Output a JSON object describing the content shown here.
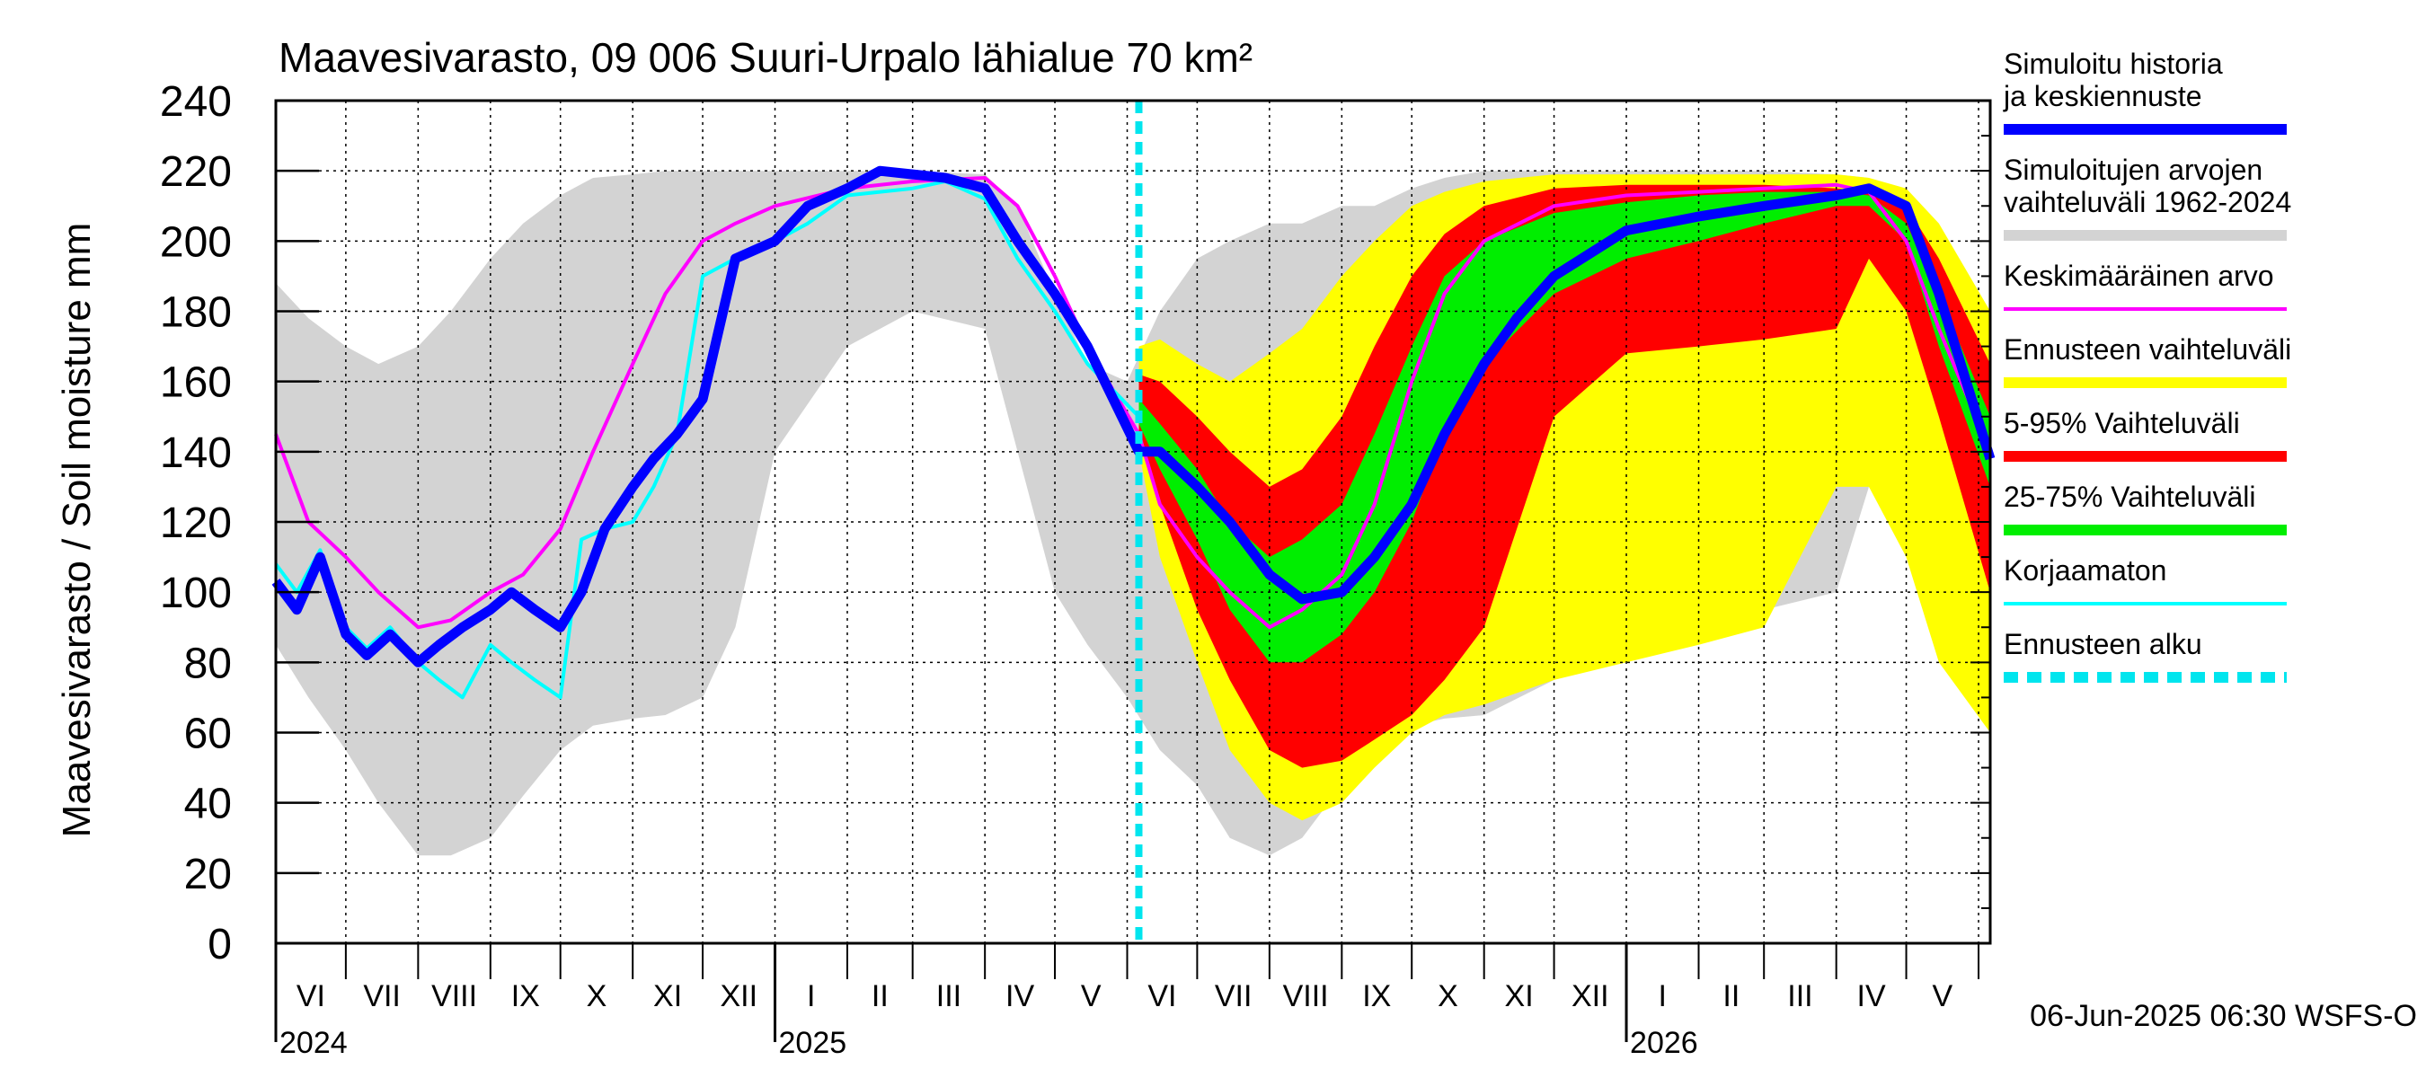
{
  "chart_data": {
    "type": "area",
    "title": "Maavesivarasto, 09 006 Suuri-Urpalo lähialue 70 km²",
    "ylabel": "Maavesivarasto / Soil moisture   mm",
    "xlabel": "",
    "ylim": [
      0,
      240
    ],
    "yticks": [
      "0",
      "20",
      "40",
      "60",
      "80",
      "100",
      "120",
      "140",
      "160",
      "180",
      "200",
      "220",
      "240"
    ],
    "x_range": [
      "2024-06-01",
      "2026-06-06"
    ],
    "grid": true,
    "legend_position": "right",
    "months": [
      {
        "label": "VI",
        "start": "2024-06-01"
      },
      {
        "label": "VII",
        "start": "2024-07-01"
      },
      {
        "label": "VIII",
        "start": "2024-08-01"
      },
      {
        "label": "IX",
        "start": "2024-09-01"
      },
      {
        "label": "X",
        "start": "2024-10-01"
      },
      {
        "label": "XI",
        "start": "2024-11-01"
      },
      {
        "label": "XII",
        "start": "2024-12-01"
      },
      {
        "label": "I",
        "start": "2025-01-01"
      },
      {
        "label": "II",
        "start": "2025-02-01"
      },
      {
        "label": "III",
        "start": "2025-03-01"
      },
      {
        "label": "IV",
        "start": "2025-04-01"
      },
      {
        "label": "V",
        "start": "2025-05-01"
      },
      {
        "label": "VI",
        "start": "2025-06-01"
      },
      {
        "label": "VII",
        "start": "2025-07-01"
      },
      {
        "label": "VIII",
        "start": "2025-08-01"
      },
      {
        "label": "IX",
        "start": "2025-09-01"
      },
      {
        "label": "X",
        "start": "2025-10-01"
      },
      {
        "label": "XI",
        "start": "2025-11-01"
      },
      {
        "label": "XII",
        "start": "2025-12-01"
      },
      {
        "label": "I",
        "start": "2026-01-01"
      },
      {
        "label": "II",
        "start": "2026-02-01"
      },
      {
        "label": "III",
        "start": "2026-03-01"
      },
      {
        "label": "IV",
        "start": "2026-04-01"
      },
      {
        "label": "V",
        "start": "2026-05-01"
      },
      {
        "label": "",
        "start": "2026-06-01"
      }
    ],
    "years": [
      {
        "label": "2024",
        "date": "2024-06-01"
      },
      {
        "label": "2025",
        "date": "2025-01-01"
      },
      {
        "label": "2026",
        "date": "2026-01-01"
      }
    ],
    "forecast_start": "2025-06-06",
    "timestamp": "06-Jun-2025 06:30 WSFS-O",
    "colors": {
      "history_range": "#d3d3d3",
      "forecast_range": "#ffff00",
      "p5_95": "#ff0000",
      "p25_75": "#00ee00",
      "simulated": "#0000ff",
      "mean": "#ff00ff",
      "uncorrected": "#00ffff",
      "forecast_start": "#00e5ee"
    },
    "legend": [
      {
        "label": "Simuloitu historia ja keskiennuste",
        "color": "#0000ff",
        "style": "solid"
      },
      {
        "label": "Simuloitujen arvojen vaihteluväli 1962-2024",
        "color": "#d3d3d3",
        "style": "solid"
      },
      {
        "label": "Keskimääräinen arvo",
        "color": "#ff00ff",
        "style": "thin"
      },
      {
        "label": "Ennusteen vaihteluväli",
        "color": "#ffff00",
        "style": "solid"
      },
      {
        "label": "5-95% Vaihteluväli",
        "color": "#ff0000",
        "style": "solid"
      },
      {
        "label": "25-75% Vaihteluväli",
        "color": "#00ee00",
        "style": "solid"
      },
      {
        "label": "Korjaamaton",
        "color": "#00ffff",
        "style": "thin"
      },
      {
        "label": "Ennusteen alku",
        "color": "#00e5ee",
        "style": "dashed"
      }
    ],
    "history_range": {
      "x": [
        "2024-06-01",
        "2024-06-15",
        "2024-07-01",
        "2024-07-15",
        "2024-08-01",
        "2024-08-15",
        "2024-09-01",
        "2024-09-15",
        "2024-10-01",
        "2024-10-15",
        "2024-11-01",
        "2024-11-15",
        "2024-12-01",
        "2024-12-15",
        "2025-01-01",
        "2025-02-01",
        "2025-03-01",
        "2025-04-01",
        "2025-04-15",
        "2025-05-01",
        "2025-05-15",
        "2025-06-01",
        "2025-06-15",
        "2025-07-01",
        "2025-07-15",
        "2025-08-01",
        "2025-08-15",
        "2025-09-01",
        "2025-09-15",
        "2025-10-01",
        "2025-10-15",
        "2025-11-01",
        "2025-12-01",
        "2026-01-01",
        "2026-02-01",
        "2026-03-01",
        "2026-04-01",
        "2026-04-15",
        "2026-05-01",
        "2026-05-15",
        "2026-06-06"
      ],
      "upper": [
        188,
        178,
        170,
        165,
        170,
        180,
        195,
        205,
        213,
        218,
        219,
        220,
        220,
        220,
        220,
        220,
        220,
        219,
        210,
        185,
        165,
        160,
        180,
        195,
        200,
        205,
        205,
        210,
        210,
        215,
        218,
        220,
        220,
        220,
        220,
        220,
        219,
        218,
        210,
        195,
        180
      ],
      "lower": [
        85,
        70,
        55,
        40,
        25,
        25,
        30,
        42,
        55,
        62,
        64,
        65,
        70,
        90,
        140,
        170,
        180,
        175,
        140,
        100,
        85,
        70,
        55,
        45,
        30,
        25,
        30,
        45,
        55,
        62,
        64,
        65,
        75,
        85,
        90,
        95,
        100,
        130,
        140,
        110,
        82
      ]
    },
    "forecast_range": {
      "x": [
        "2025-06-06",
        "2025-06-15",
        "2025-07-01",
        "2025-07-15",
        "2025-08-01",
        "2025-08-15",
        "2025-09-01",
        "2025-09-15",
        "2025-10-01",
        "2025-10-15",
        "2025-11-01",
        "2025-12-01",
        "2026-01-01",
        "2026-02-01",
        "2026-03-01",
        "2026-04-01",
        "2026-04-15",
        "2026-05-01",
        "2026-05-15",
        "2026-06-06"
      ],
      "upper": [
        170,
        172,
        165,
        160,
        168,
        175,
        190,
        200,
        210,
        214,
        217,
        219,
        219,
        219,
        219,
        219,
        218,
        215,
        205,
        180
      ],
      "lower": [
        140,
        110,
        80,
        55,
        40,
        35,
        40,
        50,
        60,
        65,
        68,
        75,
        80,
        85,
        90,
        130,
        130,
        110,
        80,
        60
      ]
    },
    "p5_95": {
      "x": [
        "2025-06-06",
        "2025-06-15",
        "2025-07-01",
        "2025-07-15",
        "2025-08-01",
        "2025-08-15",
        "2025-09-01",
        "2025-09-15",
        "2025-10-01",
        "2025-10-15",
        "2025-11-01",
        "2025-12-01",
        "2026-01-01",
        "2026-02-01",
        "2026-03-01",
        "2026-04-01",
        "2026-04-15",
        "2026-05-01",
        "2026-05-15",
        "2026-06-06"
      ],
      "upper": [
        162,
        160,
        150,
        140,
        130,
        135,
        150,
        170,
        190,
        202,
        210,
        215,
        216,
        216,
        216,
        215,
        214,
        210,
        195,
        165
      ],
      "lower": [
        145,
        125,
        95,
        75,
        55,
        50,
        52,
        58,
        65,
        75,
        90,
        150,
        168,
        170,
        172,
        175,
        195,
        180,
        150,
        100
      ]
    },
    "p25_75": {
      "x": [
        "2025-06-06",
        "2025-06-15",
        "2025-07-01",
        "2025-07-15",
        "2025-08-01",
        "2025-08-15",
        "2025-09-01",
        "2025-09-15",
        "2025-10-01",
        "2025-10-15",
        "2025-11-01",
        "2025-12-01",
        "2026-01-01",
        "2026-02-01",
        "2026-03-01",
        "2026-04-01",
        "2026-04-15",
        "2026-05-01",
        "2026-05-15",
        "2026-06-06"
      ],
      "upper": [
        155,
        148,
        135,
        120,
        110,
        115,
        125,
        145,
        170,
        190,
        200,
        208,
        211,
        213,
        214,
        214,
        213,
        205,
        185,
        150
      ],
      "lower": [
        148,
        135,
        115,
        95,
        80,
        80,
        88,
        100,
        120,
        145,
        165,
        185,
        195,
        200,
        205,
        210,
        210,
        200,
        170,
        130
      ]
    },
    "simulated": {
      "x": [
        "2024-06-01",
        "2024-06-10",
        "2024-06-20",
        "2024-07-01",
        "2024-07-10",
        "2024-07-20",
        "2024-08-01",
        "2024-08-10",
        "2024-08-20",
        "2024-09-01",
        "2024-09-10",
        "2024-09-20",
        "2024-10-01",
        "2024-10-10",
        "2024-10-20",
        "2024-11-01",
        "2024-11-10",
        "2024-11-20",
        "2024-12-01",
        "2024-12-15",
        "2025-01-01",
        "2025-01-15",
        "2025-02-01",
        "2025-02-15",
        "2025-03-01",
        "2025-03-15",
        "2025-04-01",
        "2025-04-15",
        "2025-05-01",
        "2025-05-15",
        "2025-06-06",
        "2025-06-15",
        "2025-07-01",
        "2025-07-15",
        "2025-08-01",
        "2025-08-15",
        "2025-09-01",
        "2025-09-15",
        "2025-10-01",
        "2025-10-15",
        "2025-11-01",
        "2025-11-15",
        "2025-12-01",
        "2026-01-01",
        "2026-02-01",
        "2026-03-01",
        "2026-04-01",
        "2026-04-15",
        "2026-05-01",
        "2026-05-15",
        "2026-06-06"
      ],
      "values": [
        103,
        95,
        110,
        88,
        82,
        88,
        80,
        85,
        90,
        95,
        100,
        95,
        90,
        100,
        118,
        130,
        138,
        145,
        155,
        195,
        200,
        210,
        215,
        220,
        219,
        218,
        215,
        200,
        185,
        170,
        140,
        140,
        130,
        120,
        105,
        98,
        100,
        110,
        125,
        145,
        165,
        178,
        190,
        203,
        207,
        210,
        213,
        215,
        210,
        185,
        138
      ]
    },
    "mean": {
      "x": [
        "2024-06-01",
        "2024-06-15",
        "2024-07-01",
        "2024-07-15",
        "2024-08-01",
        "2024-08-15",
        "2024-09-01",
        "2024-09-15",
        "2024-10-01",
        "2024-10-15",
        "2024-11-01",
        "2024-11-15",
        "2024-12-01",
        "2024-12-15",
        "2025-01-01",
        "2025-02-01",
        "2025-03-01",
        "2025-04-01",
        "2025-04-15",
        "2025-05-01",
        "2025-05-15",
        "2025-06-06",
        "2025-06-15",
        "2025-07-01",
        "2025-07-15",
        "2025-08-01",
        "2025-08-15",
        "2025-09-01",
        "2025-09-15",
        "2025-10-01",
        "2025-10-15",
        "2025-11-01",
        "2025-12-01",
        "2026-01-01",
        "2026-02-01",
        "2026-03-01",
        "2026-04-01",
        "2026-04-15",
        "2026-05-01",
        "2026-05-15",
        "2026-06-06"
      ],
      "values": [
        145,
        120,
        110,
        100,
        90,
        92,
        100,
        105,
        118,
        140,
        165,
        185,
        200,
        205,
        210,
        215,
        217,
        218,
        210,
        190,
        170,
        145,
        125,
        110,
        100,
        90,
        95,
        105,
        125,
        160,
        185,
        200,
        210,
        213,
        214,
        215,
        216,
        214,
        200,
        175,
        140
      ]
    },
    "uncorrected": {
      "x": [
        "2024-06-01",
        "2024-06-10",
        "2024-06-20",
        "2024-07-01",
        "2024-07-10",
        "2024-07-20",
        "2024-08-01",
        "2024-08-10",
        "2024-08-20",
        "2024-09-01",
        "2024-09-10",
        "2024-09-20",
        "2024-10-01",
        "2024-10-10",
        "2024-10-20",
        "2024-11-01",
        "2024-11-10",
        "2024-11-20",
        "2024-12-01",
        "2024-12-15",
        "2025-01-01",
        "2025-01-15",
        "2025-02-01",
        "2025-02-15",
        "2025-03-01",
        "2025-03-15",
        "2025-04-01",
        "2025-04-15",
        "2025-05-01",
        "2025-05-15",
        "2025-06-06"
      ],
      "values": [
        108,
        100,
        112,
        90,
        84,
        90,
        80,
        75,
        70,
        85,
        80,
        75,
        70,
        115,
        118,
        120,
        130,
        145,
        190,
        195,
        200,
        205,
        213,
        214,
        215,
        217,
        212,
        195,
        180,
        165,
        150
      ]
    }
  }
}
